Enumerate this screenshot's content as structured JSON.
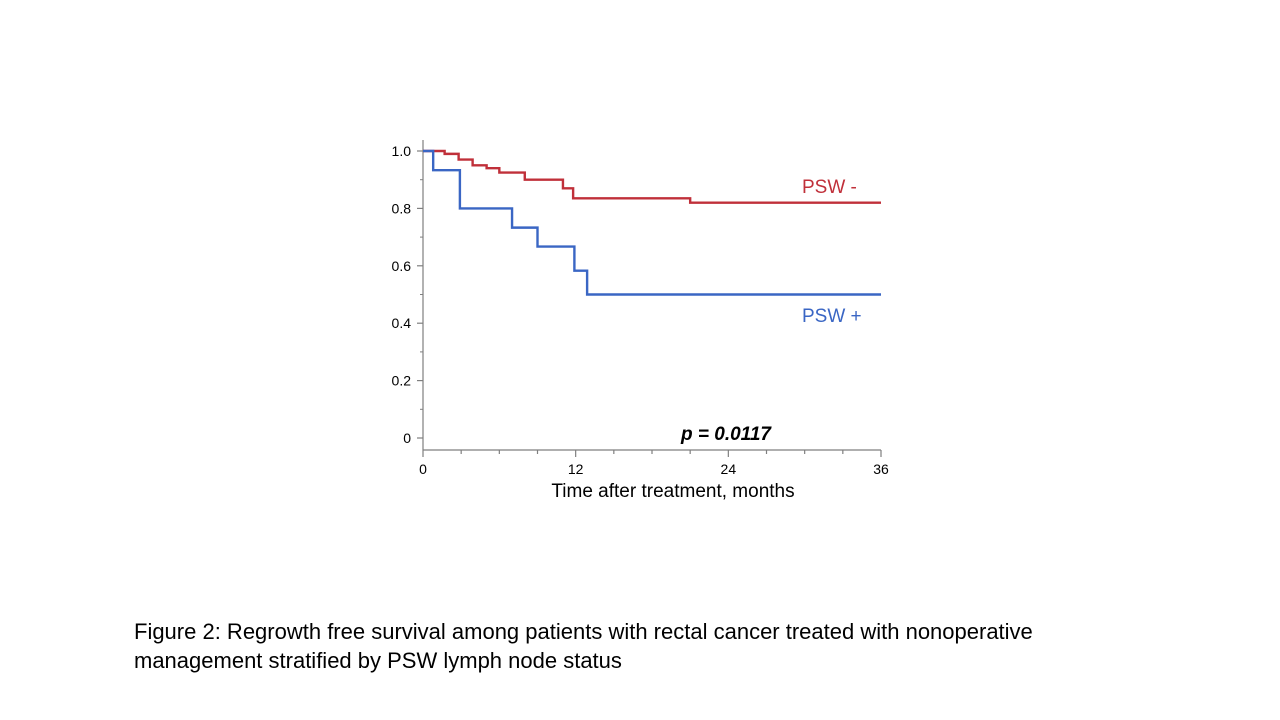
{
  "chart_data": {
    "type": "line",
    "step": true,
    "xlabel": "Time after treatment, months",
    "ylabel": "",
    "xlim": [
      0,
      36
    ],
    "ylim": [
      0,
      1.0
    ],
    "x_ticks": [
      "0",
      "12",
      "24",
      "36"
    ],
    "y_ticks": [
      "0",
      "0.2",
      "0.4",
      "0.6",
      "0.8",
      "1.0"
    ],
    "grid": false,
    "annotation": "p = 0.0117",
    "series": [
      {
        "name": "PSW -",
        "color": "#c0303a",
        "points": [
          [
            0,
            1.0
          ],
          [
            1.7,
            0.99
          ],
          [
            2.8,
            0.97
          ],
          [
            3.9,
            0.95
          ],
          [
            5.0,
            0.94
          ],
          [
            6.0,
            0.925
          ],
          [
            8.0,
            0.9
          ],
          [
            11.0,
            0.87
          ],
          [
            11.8,
            0.835
          ],
          [
            21.0,
            0.82
          ],
          [
            36,
            0.82
          ]
        ]
      },
      {
        "name": "PSW +",
        "color": "#3a66c4",
        "points": [
          [
            0,
            1.0
          ],
          [
            0.8,
            0.933
          ],
          [
            2.9,
            0.8
          ],
          [
            7.0,
            0.733
          ],
          [
            9.0,
            0.667
          ],
          [
            11.9,
            0.583
          ],
          [
            12.9,
            0.5
          ],
          [
            36,
            0.5
          ]
        ]
      }
    ]
  },
  "caption": {
    "line1": "Figure 2: Regrowth free survival among patients with rectal cancer treated with nonoperative",
    "line2": "management stratified by PSW lymph node status"
  }
}
